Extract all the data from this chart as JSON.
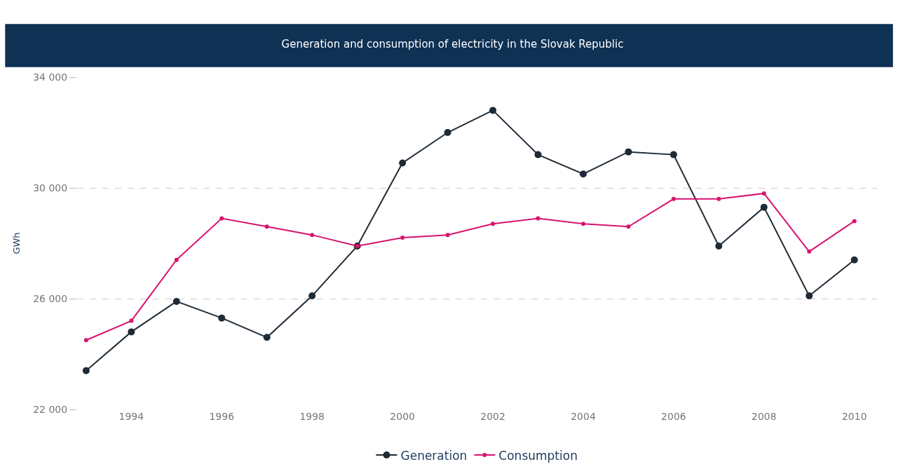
{
  "chart_data": {
    "type": "line",
    "title": "Generation and consumption of electricity in the Slovak Republic",
    "ylabel": "GWh",
    "x": [
      1993,
      1994,
      1995,
      1996,
      1997,
      1998,
      1999,
      2000,
      2001,
      2002,
      2003,
      2004,
      2005,
      2006,
      2007,
      2008,
      2009,
      2010
    ],
    "series": [
      {
        "name": "Generation",
        "color": "#1e2a36",
        "values": [
          23400,
          24800,
          25900,
          25300,
          24600,
          26100,
          27900,
          30900,
          32000,
          32800,
          31200,
          30500,
          31300,
          31200,
          27900,
          29300,
          26100,
          27400
        ]
      },
      {
        "name": "Consumption",
        "color": "#d8136f",
        "values": [
          24500,
          25200,
          27400,
          28900,
          28600,
          28300,
          27900,
          28200,
          28300,
          28700,
          28900,
          28700,
          28600,
          29600,
          29600,
          29800,
          27700,
          28800
        ]
      }
    ],
    "xlim": [
      1992.8,
      2010.5
    ],
    "xticks": [
      1994,
      1996,
      1998,
      2000,
      2002,
      2004,
      2006,
      2008,
      2010
    ],
    "ylim": [
      22000,
      34000
    ],
    "yticks": [
      {
        "value": 22000,
        "label": "22 000"
      },
      {
        "value": 26000,
        "label": "26 000"
      },
      {
        "value": 30000,
        "label": "30 000"
      },
      {
        "value": 34000,
        "label": "34 000"
      }
    ],
    "grid": "y",
    "legend": "bottom",
    "marker": "circle",
    "line_style": "solid"
  }
}
